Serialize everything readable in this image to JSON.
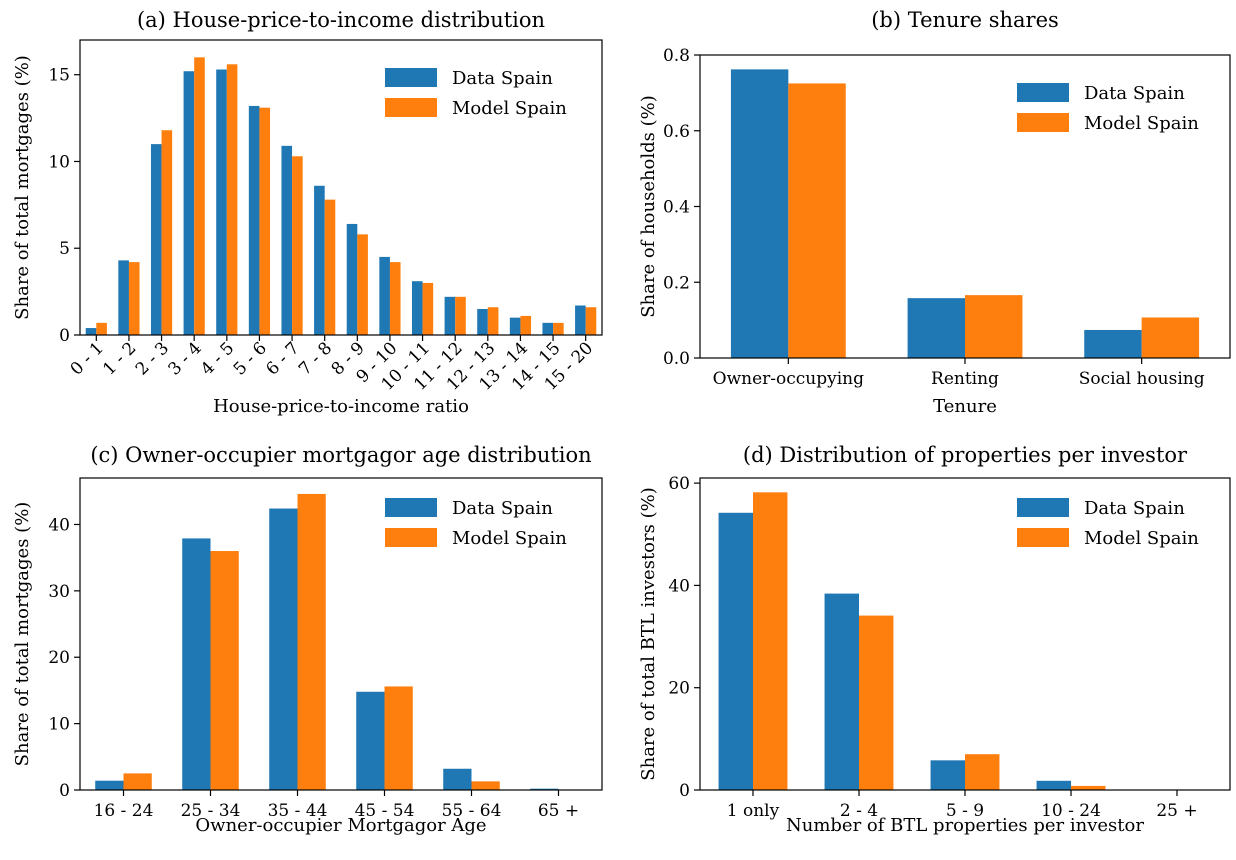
{
  "colors": {
    "data": "#1f77b4",
    "model": "#ff7f0e"
  },
  "chart_data": [
    {
      "type": "bar",
      "title": "(a) House-price-to-income distribution",
      "xlabel": "House-price-to-income ratio",
      "ylabel": "Share of total mortgages (%)",
      "ylim": [
        0,
        17
      ],
      "yticks": [
        0,
        5,
        10,
        15
      ],
      "yticklabels": [
        "0",
        "5",
        "10",
        "15"
      ],
      "categories": [
        "0 - 1",
        "1 - 2",
        "2 - 3",
        "3 - 4",
        "4 - 5",
        "5 - 6",
        "6 - 7",
        "7 - 8",
        "8 - 9",
        "9 - 10",
        "10 - 11",
        "11 - 12",
        "12 - 13",
        "13 - 14",
        "14 - 15",
        "15 - 20"
      ],
      "rotated_labels": true,
      "legend": "top-right",
      "series": [
        {
          "name": "Data Spain",
          "values": [
            0.4,
            4.3,
            11.0,
            15.2,
            15.3,
            13.2,
            10.9,
            8.6,
            6.4,
            4.5,
            3.1,
            2.2,
            1.5,
            1.0,
            0.7,
            1.7
          ]
        },
        {
          "name": "Model Spain",
          "values": [
            0.7,
            4.2,
            11.8,
            16.0,
            15.6,
            13.1,
            10.3,
            7.8,
            5.8,
            4.2,
            3.0,
            2.2,
            1.6,
            1.1,
            0.7,
            1.6
          ]
        }
      ]
    },
    {
      "type": "bar",
      "title": "(b) Tenure shares",
      "xlabel": "Tenure",
      "ylabel": "Share of households (%)",
      "ylim": [
        0,
        0.8
      ],
      "yticks": [
        0,
        0.2,
        0.4,
        0.6,
        0.8
      ],
      "yticklabels": [
        "0.0",
        "0.2",
        "0.4",
        "0.6",
        "0.8"
      ],
      "categories": [
        "Owner-occupying",
        "Renting",
        "Social housing"
      ],
      "rotated_labels": false,
      "legend": "top-right",
      "series": [
        {
          "name": "Data Spain",
          "values": [
            0.762,
            0.158,
            0.074
          ]
        },
        {
          "name": "Model Spain",
          "values": [
            0.725,
            0.166,
            0.107
          ]
        }
      ]
    },
    {
      "type": "bar",
      "title": "(c) Owner-occupier mortgagor age distribution",
      "xlabel": "Owner-occupier Mortgagor Age",
      "ylabel": "Share of total mortgages (%)",
      "ylim": [
        0,
        47
      ],
      "yticks": [
        0,
        10,
        20,
        30,
        40
      ],
      "yticklabels": [
        "0",
        "10",
        "20",
        "30",
        "40"
      ],
      "categories": [
        "16 - 24",
        "25 - 34",
        "35 - 44",
        "45 - 54",
        "55 - 64",
        "65 +"
      ],
      "rotated_labels": false,
      "legend": "top-right",
      "series": [
        {
          "name": "Data Spain",
          "values": [
            1.4,
            37.9,
            42.4,
            14.8,
            3.2,
            0.2
          ]
        },
        {
          "name": "Model Spain",
          "values": [
            2.5,
            36.0,
            44.6,
            15.6,
            1.3,
            0.0
          ]
        }
      ]
    },
    {
      "type": "bar",
      "title": "(d) Distribution of properties per investor",
      "xlabel": "Number of BTL properties per investor",
      "ylabel": "Share of total BTL investors (%)",
      "ylim": [
        0,
        61
      ],
      "yticks": [
        0,
        20,
        40,
        60
      ],
      "yticklabels": [
        "0",
        "20",
        "40",
        "60"
      ],
      "categories": [
        "1 only",
        "2 - 4",
        "5 - 9",
        "10 - 24",
        "25 +"
      ],
      "rotated_labels": false,
      "legend": "top-right",
      "series": [
        {
          "name": "Data Spain",
          "values": [
            54.2,
            38.4,
            5.8,
            1.8,
            0.0
          ]
        },
        {
          "name": "Model Spain",
          "values": [
            58.2,
            34.1,
            7.0,
            0.8,
            0.0
          ]
        }
      ]
    }
  ]
}
